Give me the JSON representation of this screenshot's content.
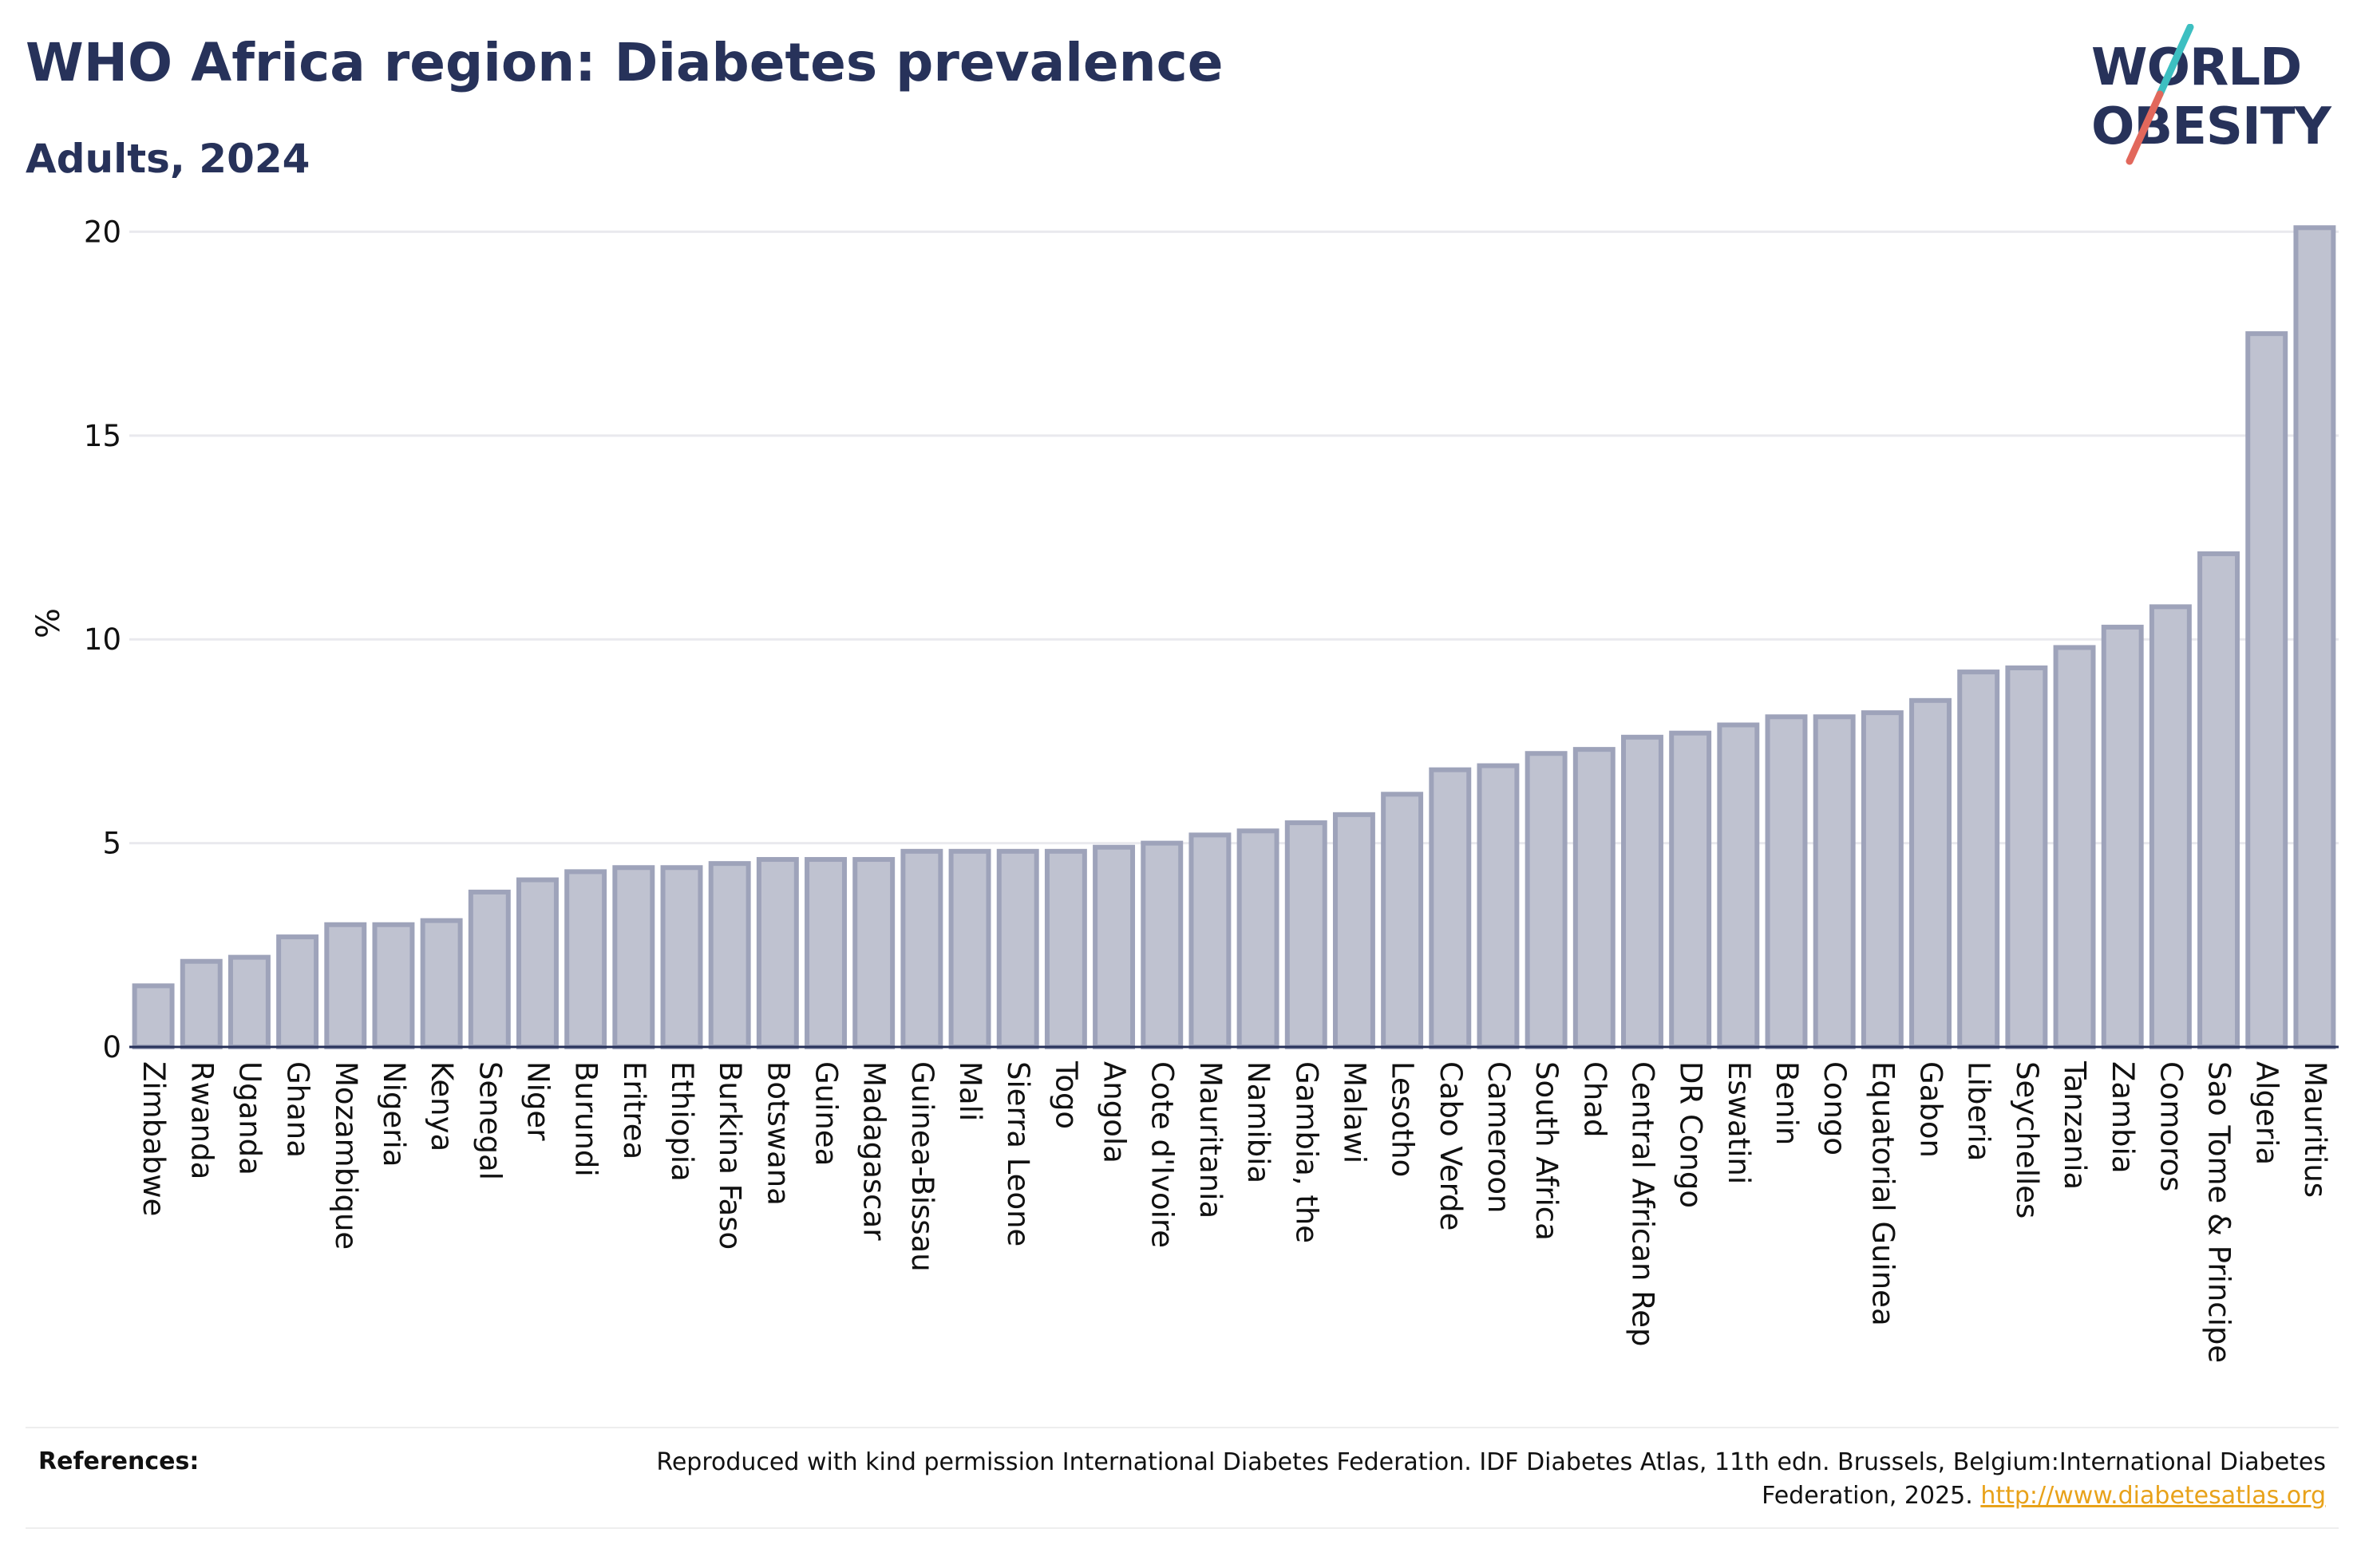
{
  "header": {
    "title": "WHO Africa region: Diabetes prevalence",
    "subtitle": "Adults, 2024"
  },
  "logo": {
    "line1": "WORLD",
    "line2": "OBESITY",
    "slash_colors": [
      "#3dbfc1",
      "#e2685c"
    ],
    "text_color": "#27325a"
  },
  "footer": {
    "references_label": "References:",
    "references_text": "Reproduced with kind permission International Diabetes Federation. IDF Diabetes Atlas, 11th edn. Brussels, Belgium:International Diabetes Federation, 2025.",
    "references_link": "http://www.diabetesatlas.org"
  },
  "chart_data": {
    "type": "bar",
    "ylabel": "%",
    "ylim": [
      0,
      20.4
    ],
    "yticks": [
      0,
      5,
      10,
      15,
      20
    ],
    "grid": true,
    "bar_fill": "#bfc2d0",
    "bar_stroke": "#9ea3ba",
    "categories": [
      "Zimbabwe",
      "Rwanda",
      "Uganda",
      "Ghana",
      "Mozambique",
      "Nigeria",
      "Kenya",
      "Senegal",
      "Niger",
      "Burundi",
      "Eritrea",
      "Ethiopia",
      "Burkina Faso",
      "Botswana",
      "Guinea",
      "Madagascar",
      "Guinea-Bissau",
      "Mali",
      "Sierra Leone",
      "Togo",
      "Angola",
      "Cote d'Ivoire",
      "Mauritania",
      "Namibia",
      "Gambia, the",
      "Malawi",
      "Lesotho",
      "Cabo Verde",
      "Cameroon",
      "South Africa",
      "Chad",
      "Central African Rep",
      "DR Congo",
      "Eswatini",
      "Benin",
      "Congo",
      "Equatorial Guinea",
      "Gabon",
      "Liberia",
      "Seychelles",
      "Tanzania",
      "Zambia",
      "Comoros",
      "Sao Tome & Principe",
      "Algeria",
      "Mauritius"
    ],
    "values": [
      1.5,
      2.1,
      2.2,
      2.7,
      3.0,
      3.0,
      3.1,
      3.8,
      4.1,
      4.3,
      4.4,
      4.4,
      4.5,
      4.6,
      4.6,
      4.6,
      4.8,
      4.8,
      4.8,
      4.8,
      4.9,
      5.0,
      5.2,
      5.3,
      5.5,
      5.7,
      6.2,
      6.8,
      6.9,
      7.2,
      7.3,
      7.6,
      7.7,
      7.9,
      8.1,
      8.1,
      8.2,
      8.5,
      9.2,
      9.3,
      9.8,
      10.3,
      10.8,
      12.1,
      17.5,
      20.1
    ]
  }
}
